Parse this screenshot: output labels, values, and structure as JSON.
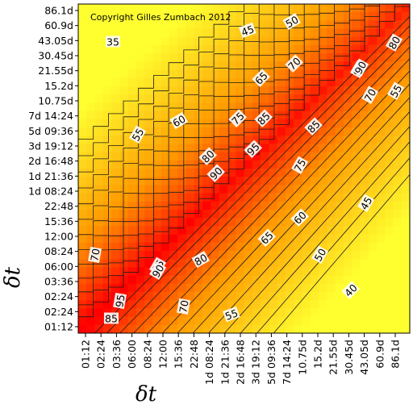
{
  "chart_data": {
    "type": "heatmap",
    "title": "",
    "copyright": "Copyright Gilles Zumbach 2012",
    "xlabel": "δt",
    "ylabel": "δt",
    "tick_labels": [
      "01:12",
      "02:24",
      "03:36",
      "06:00",
      "08:24",
      "12:00",
      "15:36",
      "22:48",
      "1d 08:24",
      "1d 21:36",
      "2d 16:48",
      "3d 19:12",
      "5d 09:36",
      "7d 14:24",
      "10.75d",
      "15.2d",
      "21.55d",
      "30.45d",
      "43.05d",
      "60.9d",
      "86.1d"
    ],
    "y_tick_labels": [
      "01:12",
      "02:24",
      "02:24",
      "03:36",
      "06:00",
      "08:24",
      "12:00",
      "15:36",
      "22:48",
      "1d 08:24",
      "1d 21:36",
      "2d 16:48",
      "3d 19:12",
      "5d 09:36",
      "7d 14:24",
      "10.75d",
      "15.2d",
      "21.55d",
      "30.45d",
      "43.05d",
      "60.9d",
      "86.1d"
    ],
    "value_range": [
      30,
      100
    ],
    "contour_levels": [
      35,
      40,
      45,
      50,
      55,
      60,
      65,
      70,
      75,
      80,
      85,
      90,
      95
    ],
    "colorscale": {
      "low": "#ffff30",
      "mid": "#ff9a00",
      "high": "#ff0000"
    },
    "contour_labels": [
      {
        "text": "35"
      },
      {
        "text": "45"
      },
      {
        "text": "50"
      },
      {
        "text": "80"
      },
      {
        "text": "70"
      },
      {
        "text": "95"
      },
      {
        "text": "90"
      },
      {
        "text": "65"
      },
      {
        "text": "70"
      },
      {
        "text": "55"
      },
      {
        "text": "60"
      },
      {
        "text": "75"
      },
      {
        "text": "85"
      },
      {
        "text": "85"
      },
      {
        "text": "55"
      },
      {
        "text": "80"
      },
      {
        "text": "95"
      },
      {
        "text": "90"
      },
      {
        "text": "75"
      },
      {
        "text": "45"
      },
      {
        "text": "60"
      },
      {
        "text": "65"
      },
      {
        "text": "50"
      },
      {
        "text": "40"
      },
      {
        "text": "70"
      },
      {
        "text": "95"
      },
      {
        "text": "90"
      },
      {
        "text": "80"
      },
      {
        "text": "95"
      },
      {
        "text": "70"
      },
      {
        "text": "55"
      },
      {
        "text": "85"
      }
    ]
  }
}
